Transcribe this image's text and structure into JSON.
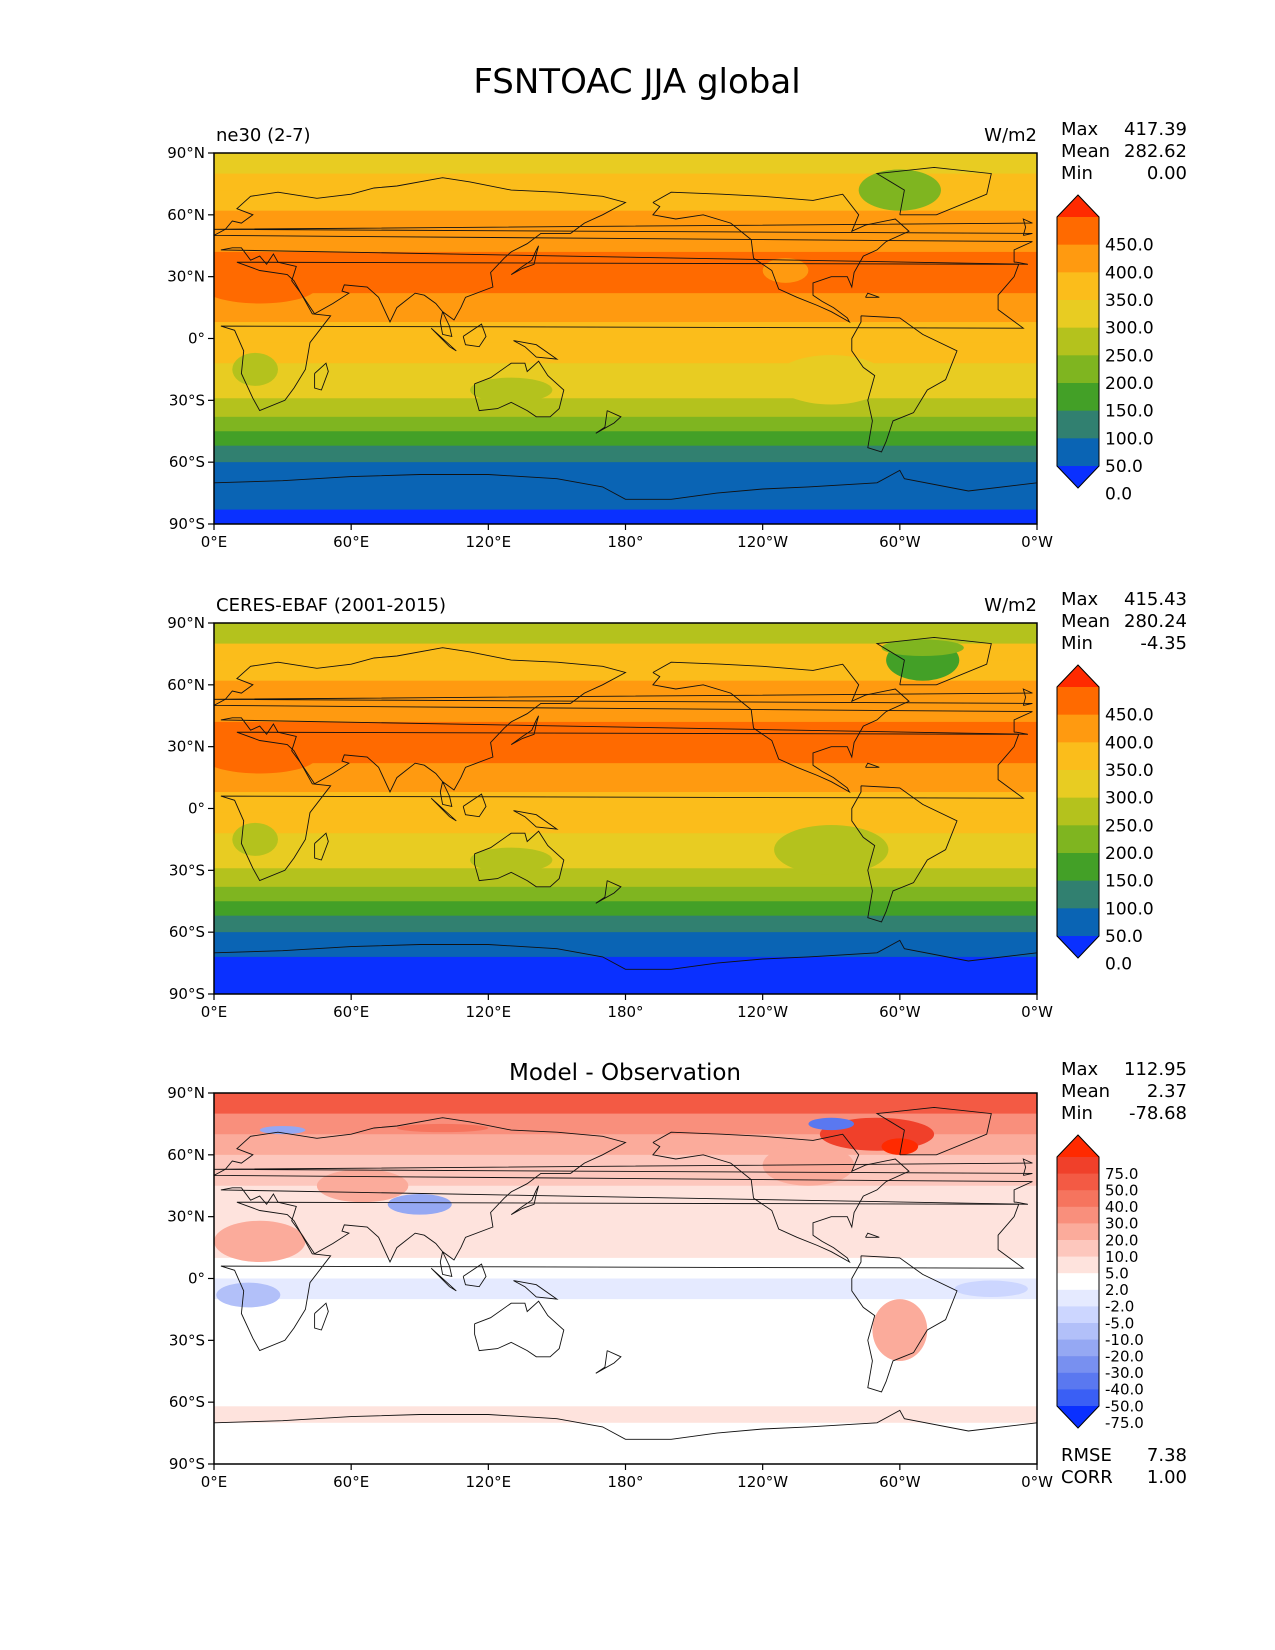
{
  "figure": {
    "title": "FSNTOAC JJA global"
  },
  "chart_data": [
    {
      "type": "heatmap",
      "panel": "top",
      "title": "ne30 (2-7)",
      "units": "W/m2",
      "stats": {
        "max_label": "Max",
        "max": "417.39",
        "mean_label": "Mean",
        "mean": "282.62",
        "min_label": "Min",
        "min": "0.00"
      },
      "xticks": [
        "0°E",
        "60°E",
        "120°E",
        "180°",
        "120°W",
        "60°W",
        "0°W"
      ],
      "yticks": [
        "90°N",
        "60°N",
        "30°N",
        "0°",
        "30°S",
        "60°S",
        "90°S"
      ],
      "xlim": [
        0,
        360
      ],
      "ylim": [
        -90,
        90
      ],
      "colorbar_levels": [
        "450.0",
        "400.0",
        "350.0",
        "300.0",
        "250.0",
        "200.0",
        "150.0",
        "100.0",
        "50.0",
        "0.0"
      ],
      "colorbar_colors": [
        "#ff2a00",
        "#ff6a00",
        "#ff9a10",
        "#fbbd1b",
        "#e8cc22",
        "#b4c21d",
        "#7fb520",
        "#43a027",
        "#318070",
        "#0a64b4",
        "#0a30ff"
      ],
      "zonal_bands": [
        {
          "lat_from": 90,
          "lat_to": 80,
          "value": 290
        },
        {
          "lat_from": 80,
          "lat_to": 72,
          "value": 310
        },
        {
          "lat_from": 72,
          "lat_to": 62,
          "value": 340
        },
        {
          "lat_from": 62,
          "lat_to": 42,
          "value": 370
        },
        {
          "lat_from": 42,
          "lat_to": 22,
          "value": 410
        },
        {
          "lat_from": 22,
          "lat_to": 8,
          "value": 370
        },
        {
          "lat_from": 8,
          "lat_to": -2,
          "value": 340
        },
        {
          "lat_from": -2,
          "lat_to": -12,
          "value": 320
        },
        {
          "lat_from": -12,
          "lat_to": -20,
          "value": 290
        },
        {
          "lat_from": -20,
          "lat_to": -29,
          "value": 260
        },
        {
          "lat_from": -29,
          "lat_to": -38,
          "value": 220
        },
        {
          "lat_from": -38,
          "lat_to": -45,
          "value": 180
        },
        {
          "lat_from": -45,
          "lat_to": -52,
          "value": 130
        },
        {
          "lat_from": -52,
          "lat_to": -60,
          "value": 80
        },
        {
          "lat_from": -60,
          "lat_to": -83,
          "value": 25
        },
        {
          "lat_from": -83,
          "lat_to": -90,
          "value": -2
        }
      ]
    },
    {
      "type": "heatmap",
      "panel": "middle",
      "title": "CERES-EBAF (2001-2015)",
      "units": "W/m2",
      "stats": {
        "max_label": "Max",
        "max": "415.43",
        "mean_label": "Mean",
        "mean": "280.24",
        "min_label": "Min",
        "min": "-4.35"
      },
      "xticks": [
        "0°E",
        "60°E",
        "120°E",
        "180°",
        "120°W",
        "60°W",
        "0°W"
      ],
      "yticks": [
        "90°N",
        "60°N",
        "30°N",
        "0°",
        "30°S",
        "60°S",
        "90°S"
      ],
      "xlim": [
        0,
        360
      ],
      "ylim": [
        -90,
        90
      ],
      "colorbar_levels": [
        "450.0",
        "400.0",
        "350.0",
        "300.0",
        "250.0",
        "200.0",
        "150.0",
        "100.0",
        "50.0",
        "0.0"
      ],
      "colorbar_colors": [
        "#ff2a00",
        "#ff6a00",
        "#ff9a10",
        "#fbbd1b",
        "#e8cc22",
        "#b4c21d",
        "#7fb520",
        "#43a027",
        "#318070",
        "#0a64b4",
        "#0a30ff"
      ],
      "zonal_bands": [
        {
          "lat_from": 90,
          "lat_to": 80,
          "value": 240
        },
        {
          "lat_from": 80,
          "lat_to": 72,
          "value": 310
        },
        {
          "lat_from": 72,
          "lat_to": 62,
          "value": 340
        },
        {
          "lat_from": 62,
          "lat_to": 42,
          "value": 370
        },
        {
          "lat_from": 42,
          "lat_to": 22,
          "value": 410
        },
        {
          "lat_from": 22,
          "lat_to": 8,
          "value": 370
        },
        {
          "lat_from": 8,
          "lat_to": -2,
          "value": 340
        },
        {
          "lat_from": -2,
          "lat_to": -12,
          "value": 320
        },
        {
          "lat_from": -12,
          "lat_to": -20,
          "value": 290
        },
        {
          "lat_from": -20,
          "lat_to": -29,
          "value": 260
        },
        {
          "lat_from": -29,
          "lat_to": -38,
          "value": 220
        },
        {
          "lat_from": -38,
          "lat_to": -45,
          "value": 180
        },
        {
          "lat_from": -45,
          "lat_to": -52,
          "value": 130
        },
        {
          "lat_from": -52,
          "lat_to": -60,
          "value": 80
        },
        {
          "lat_from": -60,
          "lat_to": -72,
          "value": 25
        },
        {
          "lat_from": -72,
          "lat_to": -90,
          "value": -2
        }
      ]
    },
    {
      "type": "heatmap",
      "panel": "bottom",
      "title": "Model - Observation",
      "units": "",
      "stats": {
        "max_label": "Max",
        "max": "112.95",
        "mean_label": "Mean",
        "mean": "2.37",
        "min_label": "Min",
        "min": "-78.68"
      },
      "extra_stats": {
        "rmse_label": "RMSE",
        "rmse": "7.38",
        "corr_label": "CORR",
        "corr": "1.00"
      },
      "xticks": [
        "0°E",
        "60°E",
        "120°E",
        "180°",
        "120°W",
        "60°W",
        "0°W"
      ],
      "yticks": [
        "90°N",
        "60°N",
        "30°N",
        "0°",
        "30°S",
        "60°S",
        "90°S"
      ],
      "xlim": [
        0,
        360
      ],
      "ylim": [
        -90,
        90
      ],
      "colorbar_levels": [
        "75.0",
        "50.0",
        "40.0",
        "30.0",
        "20.0",
        "10.0",
        "5.0",
        "2.0",
        "-2.0",
        "-5.0",
        "-10.0",
        "-20.0",
        "-30.0",
        "-40.0",
        "-50.0",
        "-75.0"
      ],
      "colorbar_colors": [
        "#ff2a00",
        "#f0402a",
        "#f35a44",
        "#f6745e",
        "#f98f7c",
        "#fbab9b",
        "#fdc7bd",
        "#fee3dd",
        "#ffffff",
        "#e5eaff",
        "#ccd6ff",
        "#b2c0f9",
        "#95a8f3",
        "#7890f0",
        "#5a78f0",
        "#3a5ff5",
        "#0a30ff"
      ],
      "zonal_bands": [
        {
          "lat_from": 90,
          "lat_to": 80,
          "value": 45
        },
        {
          "lat_from": 80,
          "lat_to": 70,
          "value": 25
        },
        {
          "lat_from": 70,
          "lat_to": 60,
          "value": 12
        },
        {
          "lat_from": 60,
          "lat_to": 45,
          "value": 8
        },
        {
          "lat_from": 45,
          "lat_to": 35,
          "value": 4
        },
        {
          "lat_from": 35,
          "lat_to": 10,
          "value": 3
        },
        {
          "lat_from": 10,
          "lat_to": 0,
          "value": 0
        },
        {
          "lat_from": 0,
          "lat_to": -10,
          "value": -3
        },
        {
          "lat_from": -10,
          "lat_to": -28,
          "value": 0
        },
        {
          "lat_from": -28,
          "lat_to": -62,
          "value": 0
        },
        {
          "lat_from": -62,
          "lat_to": -70,
          "value": 4
        },
        {
          "lat_from": -70,
          "lat_to": -78,
          "value": 0
        },
        {
          "lat_from": -78,
          "lat_to": -90,
          "value": 0
        }
      ]
    }
  ]
}
